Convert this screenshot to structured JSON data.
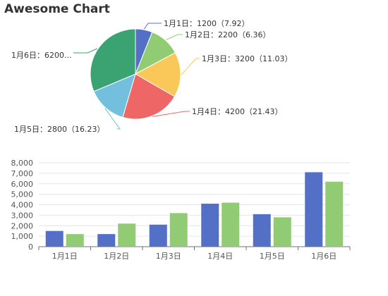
{
  "title": "Awesome Chart",
  "colors": {
    "series1": "#5470c6",
    "series2": "#91cc75",
    "pie": [
      "#5470c6",
      "#91cc75",
      "#fac858",
      "#ee6666",
      "#73c0de",
      "#3ba272"
    ]
  },
  "chart_data": [
    {
      "type": "pie",
      "categories": [
        "1月1日",
        "1月2日",
        "1月3日",
        "1月4日",
        "1月5日",
        "1月6日"
      ],
      "values": [
        1200,
        2200,
        3200,
        4200,
        2800,
        6200
      ],
      "labels": [
        "1月1日：1200（7.92）",
        "1月2日：2200（6.36）",
        "1月3日：3200（11.03）",
        "1月4日：4200（21.43）",
        "1月5日：2800（16.23）",
        "1月6日：6200..."
      ]
    },
    {
      "type": "bar",
      "categories": [
        "1月1日",
        "1月2日",
        "1月3日",
        "1月4日",
        "1月5日",
        "1月6日"
      ],
      "series": [
        {
          "values": [
            1500,
            1200,
            2100,
            4100,
            3100,
            7100
          ]
        },
        {
          "values": [
            1200,
            2200,
            3200,
            4200,
            2800,
            6200
          ]
        }
      ],
      "ylim": [
        0,
        8000
      ],
      "yticks": [
        0,
        1000,
        2000,
        3000,
        4000,
        5000,
        6000,
        7000,
        8000
      ],
      "ytick_labels": [
        "0",
        "1,000",
        "2,000",
        "3,000",
        "4,000",
        "5,000",
        "6,000",
        "7,000",
        "8,000"
      ],
      "grid": true
    }
  ]
}
